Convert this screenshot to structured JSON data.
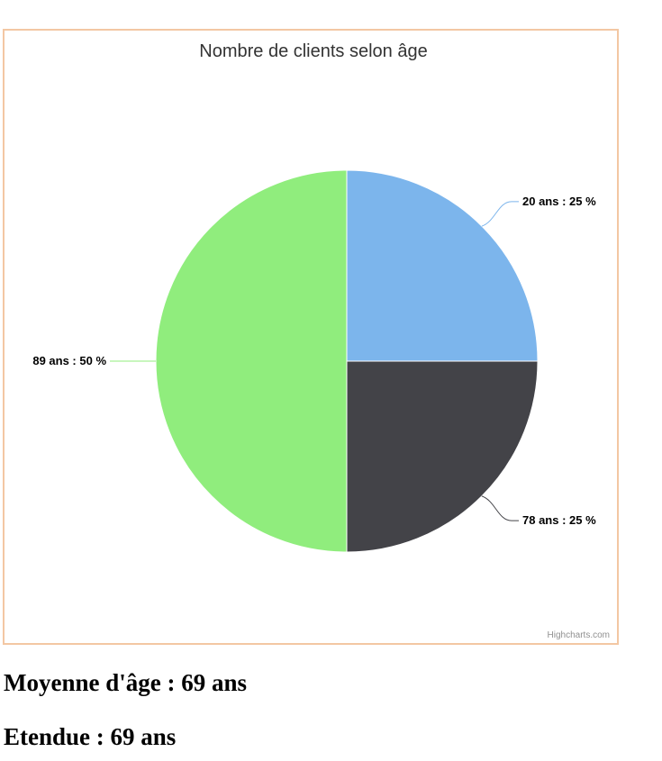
{
  "chart_data": {
    "type": "pie",
    "title": "Nombre de clients selon âge",
    "categories": [
      "20 ans",
      "78 ans",
      "89 ans"
    ],
    "values": [
      25,
      25,
      50
    ],
    "unit": "%",
    "labels": [
      "20 ans : 25 %",
      "78 ans : 25 %",
      "89 ans : 50 %"
    ],
    "colors": [
      "#7cb5ec",
      "#434348",
      "#90ed7d"
    ],
    "credits": "Highcharts.com"
  },
  "stats": {
    "mean": "Moyenne d'âge : 69 ans",
    "range": "Etendue : 69 ans"
  }
}
